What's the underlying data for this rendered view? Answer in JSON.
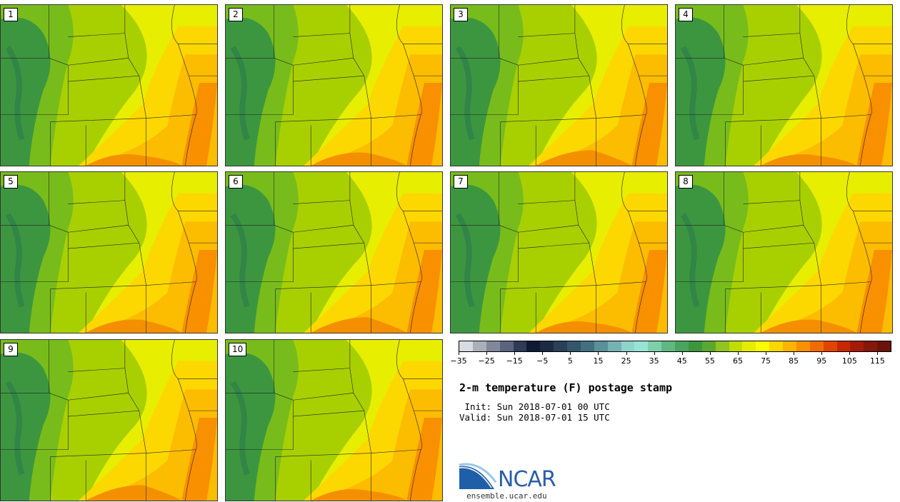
{
  "figure": {
    "title": "2-m temperature (F) postage stamp",
    "init": " Init: Sun 2018-07-01 00 UTC",
    "valid": "Valid: Sun 2018-07-01 15 UTC"
  },
  "panels": [
    "1",
    "2",
    "3",
    "4",
    "5",
    "6",
    "7",
    "8",
    "9",
    "10"
  ],
  "colorbar": {
    "tick_labels": [
      "−35",
      "−25",
      "−15",
      "−5",
      "5",
      "15",
      "25",
      "35",
      "45",
      "55",
      "65",
      "75",
      "85",
      "95",
      "105",
      "115"
    ],
    "range": [
      -35,
      120
    ],
    "colors": [
      "#d8dce0",
      "#aab0b8",
      "#80889a",
      "#5a6480",
      "#2e3a56",
      "#0e1a34",
      "#1c2a44",
      "#2a4058",
      "#34566c",
      "#427080",
      "#5a9098",
      "#74b2b4",
      "#8ed4cc",
      "#98e4d4",
      "#7ed0a8",
      "#60b880",
      "#4aa460",
      "#3c9640",
      "#5aa830",
      "#90c420",
      "#c2dc00",
      "#e4ec00",
      "#fcfc00",
      "#fcd800",
      "#fcb400",
      "#f89000",
      "#f06c00",
      "#e04400",
      "#c42800",
      "#a41c08",
      "#841808",
      "#6a1408"
    ]
  },
  "logo": {
    "text": "NCAR",
    "site": "ensemble.ucar.edu"
  },
  "colors": {
    "mountain": "#3c9640",
    "plains": "#a8d000",
    "warm": "#fcd800",
    "hot": "#f89000",
    "state_line": "#222222"
  }
}
